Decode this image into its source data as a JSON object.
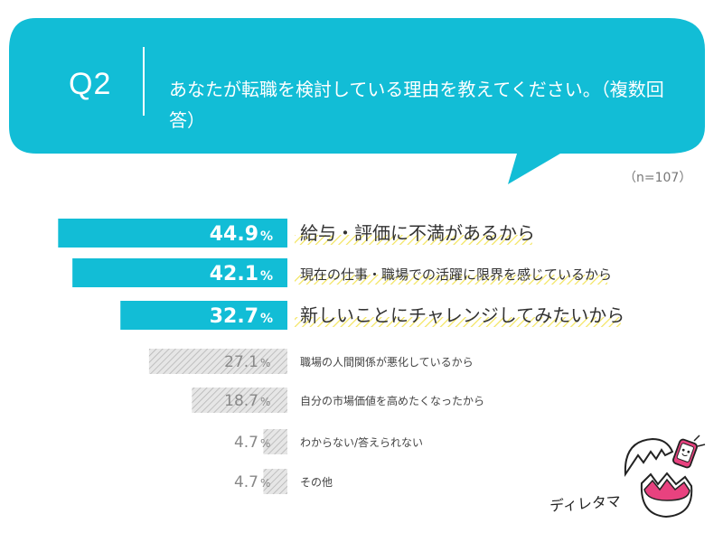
{
  "question": {
    "label": "Q2",
    "text": "あなたが転職を検討している理由を教えてください。（複数回答）",
    "n_label": "（n=107）"
  },
  "colors": {
    "accent": "#12bdd6",
    "highlight": "#f3e45c",
    "muted_bar": "#cccccc"
  },
  "mascot": {
    "label": "ディレタマ",
    "icon": "cracked-egg-mascot-icon"
  },
  "chart_data": {
    "type": "bar",
    "orientation": "horizontal",
    "categories": [
      "給与・評価に不満があるから",
      "現在の仕事・職場での活躍に限界を感じているから",
      "新しいことにチャレンジしてみたいから",
      "職場の人間関係が悪化しているから",
      "自分の市場価値を高めたくなったから",
      "わからない/答えられない",
      "その他"
    ],
    "values": [
      44.9,
      42.1,
      32.7,
      27.1,
      18.7,
      4.7,
      4.7
    ],
    "value_labels": [
      "44.9",
      "42.1",
      "32.7",
      "27.1",
      "18.7",
      "4.7",
      "4.7"
    ],
    "unit": "%",
    "highlight_top": 3,
    "xlim": [
      0,
      54
    ]
  }
}
